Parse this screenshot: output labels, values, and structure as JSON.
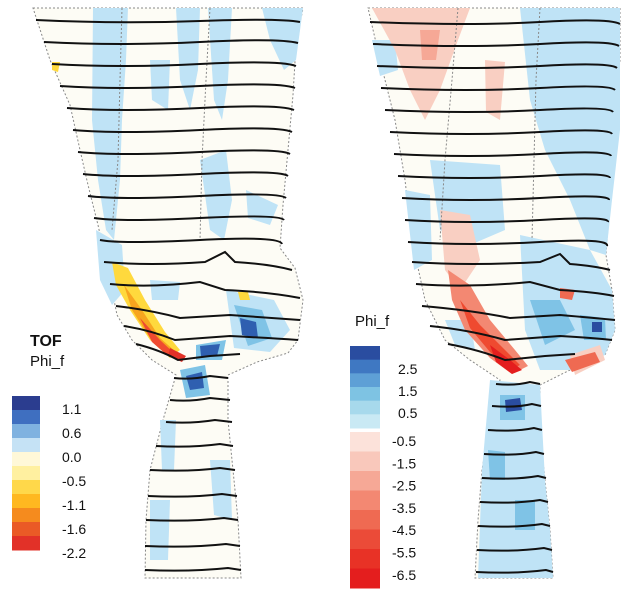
{
  "left_panel": {
    "legend": {
      "title": "TOF",
      "subtitle": "Phi_f",
      "ticks": [
        "1.1",
        "0.6",
        "0.0",
        "-0.5",
        "-1.1",
        "-1.6",
        "-2.2"
      ],
      "colors": [
        "#2b3d8f",
        "#3f6fc0",
        "#7fb2e0",
        "#c5e2f5",
        "#fff8d8",
        "#fff0a0",
        "#ffd84a",
        "#ffb820",
        "#f58b1e",
        "#ea5a26",
        "#e23128"
      ]
    }
  },
  "right_panel": {
    "legend": {
      "subtitle": "Phi_f",
      "positive_ticks": [
        "2.5",
        "1.5",
        "0.5"
      ],
      "negative_ticks": [
        "-0.5",
        "-1.5",
        "-2.5",
        "-3.5",
        "-4.5",
        "-5.5",
        "-6.5"
      ],
      "positive_colors": [
        "#2a4da0",
        "#3f78c2",
        "#5ea0d6",
        "#7ec3e3",
        "#a7d9ec",
        "#c9e9f4"
      ],
      "negative_colors": [
        "#fce2da",
        "#f9c8bb",
        "#f6a896",
        "#f38872",
        "#ef6a52",
        "#eb4b38",
        "#e83226",
        "#e41e1e"
      ]
    }
  },
  "colors": {
    "field_background": "#fdfcf5",
    "light_blue": "#bfe3f6",
    "mid_blue": "#7fc3e6",
    "dark_blue": "#2f5fb0",
    "light_red": "#f9cfc2",
    "red": "#ef4a30",
    "orange": "#f7a51f",
    "yellow": "#ffd93d",
    "streamline": "#111111",
    "boundary": "#888888"
  }
}
